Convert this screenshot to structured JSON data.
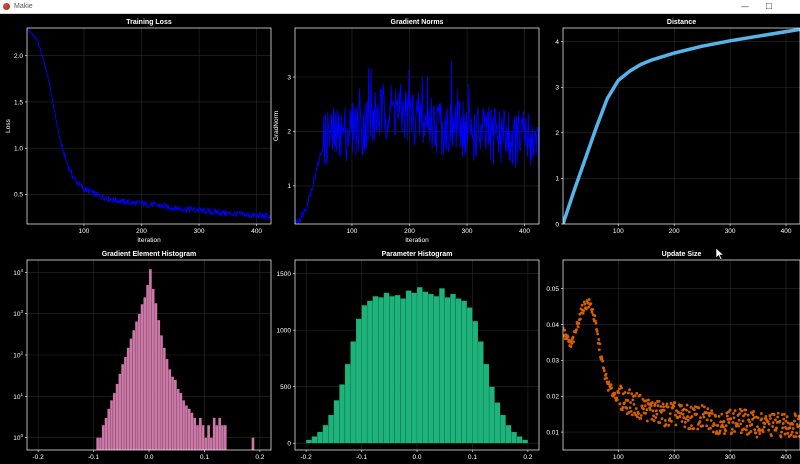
{
  "window": {
    "title": "Makie",
    "minimize": "—",
    "maximize": "☐"
  },
  "chart_data": [
    {
      "type": "line",
      "title": "Training Loss",
      "xlabel": "Iteration",
      "ylabel": "Loss",
      "xlim": [
        1,
        425
      ],
      "ylim": [
        0.18,
        2.3
      ],
      "xticks": [
        100,
        200,
        300,
        400
      ],
      "yticks": [
        0.5,
        1.0,
        1.5,
        2.0
      ],
      "ytick_labels": [
        "0.5",
        "1.0",
        "1.5",
        "2.0"
      ],
      "color": "#0000ff",
      "x": [
        1,
        10,
        20,
        30,
        40,
        50,
        60,
        70,
        80,
        90,
        100,
        120,
        140,
        160,
        180,
        200,
        220,
        240,
        260,
        280,
        300,
        320,
        340,
        360,
        380,
        400,
        425
      ],
      "y": [
        2.28,
        2.24,
        2.15,
        1.95,
        1.7,
        1.35,
        1.05,
        0.85,
        0.7,
        0.62,
        0.56,
        0.5,
        0.46,
        0.43,
        0.41,
        0.4,
        0.39,
        0.37,
        0.35,
        0.34,
        0.33,
        0.31,
        0.3,
        0.29,
        0.28,
        0.27,
        0.26
      ]
    },
    {
      "type": "line",
      "title": "Gradient Norms",
      "xlabel": "Iteration",
      "ylabel": "GradNorm",
      "xlim": [
        1,
        425
      ],
      "ylim": [
        0.3,
        3.9
      ],
      "xticks": [
        100,
        200,
        300,
        400
      ],
      "yticks": [
        1,
        2,
        3
      ],
      "color": "#0000ff",
      "x": [
        1,
        10,
        20,
        30,
        40,
        50,
        60,
        70,
        80,
        90,
        100,
        120,
        140,
        160,
        180,
        200,
        220,
        240,
        260,
        280,
        300,
        320,
        340,
        360,
        380,
        400,
        425
      ],
      "y": [
        0.32,
        0.4,
        0.6,
        0.95,
        1.35,
        1.75,
        1.95,
        1.9,
        1.95,
        2.0,
        2.05,
        2.1,
        2.25,
        2.4,
        2.35,
        2.3,
        2.2,
        2.15,
        2.1,
        2.05,
        2.0,
        1.95,
        1.9,
        1.95,
        1.85,
        1.9,
        1.8
      ]
    },
    {
      "type": "line",
      "title": "Distance",
      "xlabel": "",
      "ylabel": "",
      "xlim": [
        1,
        425
      ],
      "ylim": [
        0,
        4.3
      ],
      "xticks": [
        100,
        200,
        300,
        400
      ],
      "yticks": [
        0,
        1,
        2,
        3,
        4
      ],
      "color": "#56b4e9",
      "x": [
        1,
        20,
        40,
        60,
        80,
        100,
        120,
        140,
        160,
        200,
        250,
        300,
        350,
        400,
        425
      ],
      "y": [
        0.0,
        0.7,
        1.4,
        2.1,
        2.75,
        3.15,
        3.35,
        3.5,
        3.6,
        3.75,
        3.9,
        4.02,
        4.12,
        4.22,
        4.27
      ]
    },
    {
      "type": "bar",
      "title": "Gradient Element Histogram",
      "xlabel": "",
      "ylabel": "",
      "yscale": "log10",
      "xlim": [
        -0.22,
        0.22
      ],
      "ylim": [
        0.5,
        20000
      ],
      "xticks": [
        -0.2,
        -0.1,
        0.0,
        0.1,
        0.2
      ],
      "xtick_labels": [
        "-0.2",
        "-0.1",
        "0.0",
        "0.1",
        "0.2"
      ],
      "yticks": [
        1,
        10,
        100,
        1000,
        10000
      ],
      "ytick_base": "10",
      "ytick_exponents": [
        "0",
        "1",
        "2",
        "3",
        "4"
      ],
      "color": "#cc79a7",
      "bin_width": 0.005,
      "bins": [
        [
          -0.095,
          1
        ],
        [
          -0.09,
          1
        ],
        [
          -0.085,
          2
        ],
        [
          -0.08,
          3
        ],
        [
          -0.075,
          5
        ],
        [
          -0.07,
          8
        ],
        [
          -0.065,
          12
        ],
        [
          -0.06,
          20
        ],
        [
          -0.055,
          35
        ],
        [
          -0.05,
          60
        ],
        [
          -0.045,
          90
        ],
        [
          -0.04,
          150
        ],
        [
          -0.035,
          250
        ],
        [
          -0.03,
          400
        ],
        [
          -0.025,
          650
        ],
        [
          -0.02,
          1000
        ],
        [
          -0.015,
          1700
        ],
        [
          -0.01,
          2500
        ],
        [
          -0.005,
          5000
        ],
        [
          0.0,
          12000
        ],
        [
          0.005,
          4000
        ],
        [
          0.01,
          1800
        ],
        [
          0.015,
          700
        ],
        [
          0.02,
          300
        ],
        [
          0.025,
          150
        ],
        [
          0.03,
          80
        ],
        [
          0.035,
          45
        ],
        [
          0.04,
          30
        ],
        [
          0.045,
          25
        ],
        [
          0.05,
          15
        ],
        [
          0.055,
          12
        ],
        [
          0.06,
          8
        ],
        [
          0.065,
          6
        ],
        [
          0.07,
          5
        ],
        [
          0.075,
          4
        ],
        [
          0.08,
          3
        ],
        [
          0.085,
          2
        ],
        [
          0.09,
          3
        ],
        [
          0.095,
          2
        ],
        [
          0.1,
          1
        ],
        [
          0.105,
          2
        ],
        [
          0.11,
          1
        ],
        [
          0.115,
          3
        ],
        [
          0.12,
          2
        ],
        [
          0.125,
          3
        ],
        [
          0.13,
          2
        ],
        [
          0.135,
          2
        ],
        [
          0.185,
          1
        ]
      ]
    },
    {
      "type": "bar",
      "title": "Parameter Histogram",
      "xlabel": "",
      "ylabel": "",
      "xlim": [
        -0.22,
        0.22
      ],
      "ylim": [
        -60,
        1620
      ],
      "xticks": [
        -0.2,
        -0.1,
        0.0,
        0.1,
        0.2
      ],
      "xtick_labels": [
        "-0.2",
        "-0.1",
        "0.0",
        "0.1",
        "0.2"
      ],
      "yticks": [
        0,
        500,
        1000,
        1500
      ],
      "color": "#1db37a",
      "bin_width": 0.01,
      "bins": [
        [
          -0.2,
          30
        ],
        [
          -0.19,
          60
        ],
        [
          -0.18,
          100
        ],
        [
          -0.17,
          160
        ],
        [
          -0.16,
          250
        ],
        [
          -0.15,
          380
        ],
        [
          -0.14,
          520
        ],
        [
          -0.13,
          700
        ],
        [
          -0.12,
          900
        ],
        [
          -0.11,
          1100
        ],
        [
          -0.1,
          1220
        ],
        [
          -0.09,
          1260
        ],
        [
          -0.08,
          1300
        ],
        [
          -0.07,
          1290
        ],
        [
          -0.06,
          1330
        ],
        [
          -0.05,
          1300
        ],
        [
          -0.04,
          1310
        ],
        [
          -0.03,
          1280
        ],
        [
          -0.02,
          1350
        ],
        [
          -0.01,
          1330
        ],
        [
          0.0,
          1380
        ],
        [
          0.01,
          1340
        ],
        [
          0.02,
          1320
        ],
        [
          0.03,
          1300
        ],
        [
          0.04,
          1370
        ],
        [
          0.05,
          1290
        ],
        [
          0.06,
          1320
        ],
        [
          0.07,
          1280
        ],
        [
          0.08,
          1260
        ],
        [
          0.09,
          1200
        ],
        [
          0.1,
          1080
        ],
        [
          0.11,
          900
        ],
        [
          0.12,
          700
        ],
        [
          0.13,
          500
        ],
        [
          0.14,
          360
        ],
        [
          0.15,
          250
        ],
        [
          0.16,
          160
        ],
        [
          0.17,
          100
        ],
        [
          0.18,
          60
        ],
        [
          0.19,
          30
        ]
      ]
    },
    {
      "type": "scatter",
      "title": "Update Size",
      "xlabel": "",
      "ylabel": "",
      "xlim": [
        1,
        425
      ],
      "ylim": [
        0.005,
        0.058
      ],
      "xticks": [
        100,
        200,
        300,
        400
      ],
      "yticks": [
        0.01,
        0.02,
        0.03,
        0.04,
        0.05
      ],
      "ytick_labels": [
        "0.01",
        "0.02",
        "0.03",
        "0.04",
        "0.05"
      ],
      "color": "#d55e00",
      "x": [
        1,
        8,
        15,
        22,
        30,
        38,
        46,
        52,
        58,
        66,
        74,
        82,
        90,
        98,
        110,
        125,
        140,
        160,
        180,
        200,
        225,
        250,
        275,
        300,
        325,
        350,
        375,
        400,
        425
      ],
      "y": [
        0.038,
        0.036,
        0.034,
        0.037,
        0.042,
        0.045,
        0.046,
        0.045,
        0.041,
        0.034,
        0.027,
        0.023,
        0.021,
        0.02,
        0.019,
        0.018,
        0.017,
        0.016,
        0.015,
        0.015,
        0.014,
        0.014,
        0.013,
        0.013,
        0.013,
        0.012,
        0.012,
        0.012,
        0.012
      ]
    }
  ]
}
